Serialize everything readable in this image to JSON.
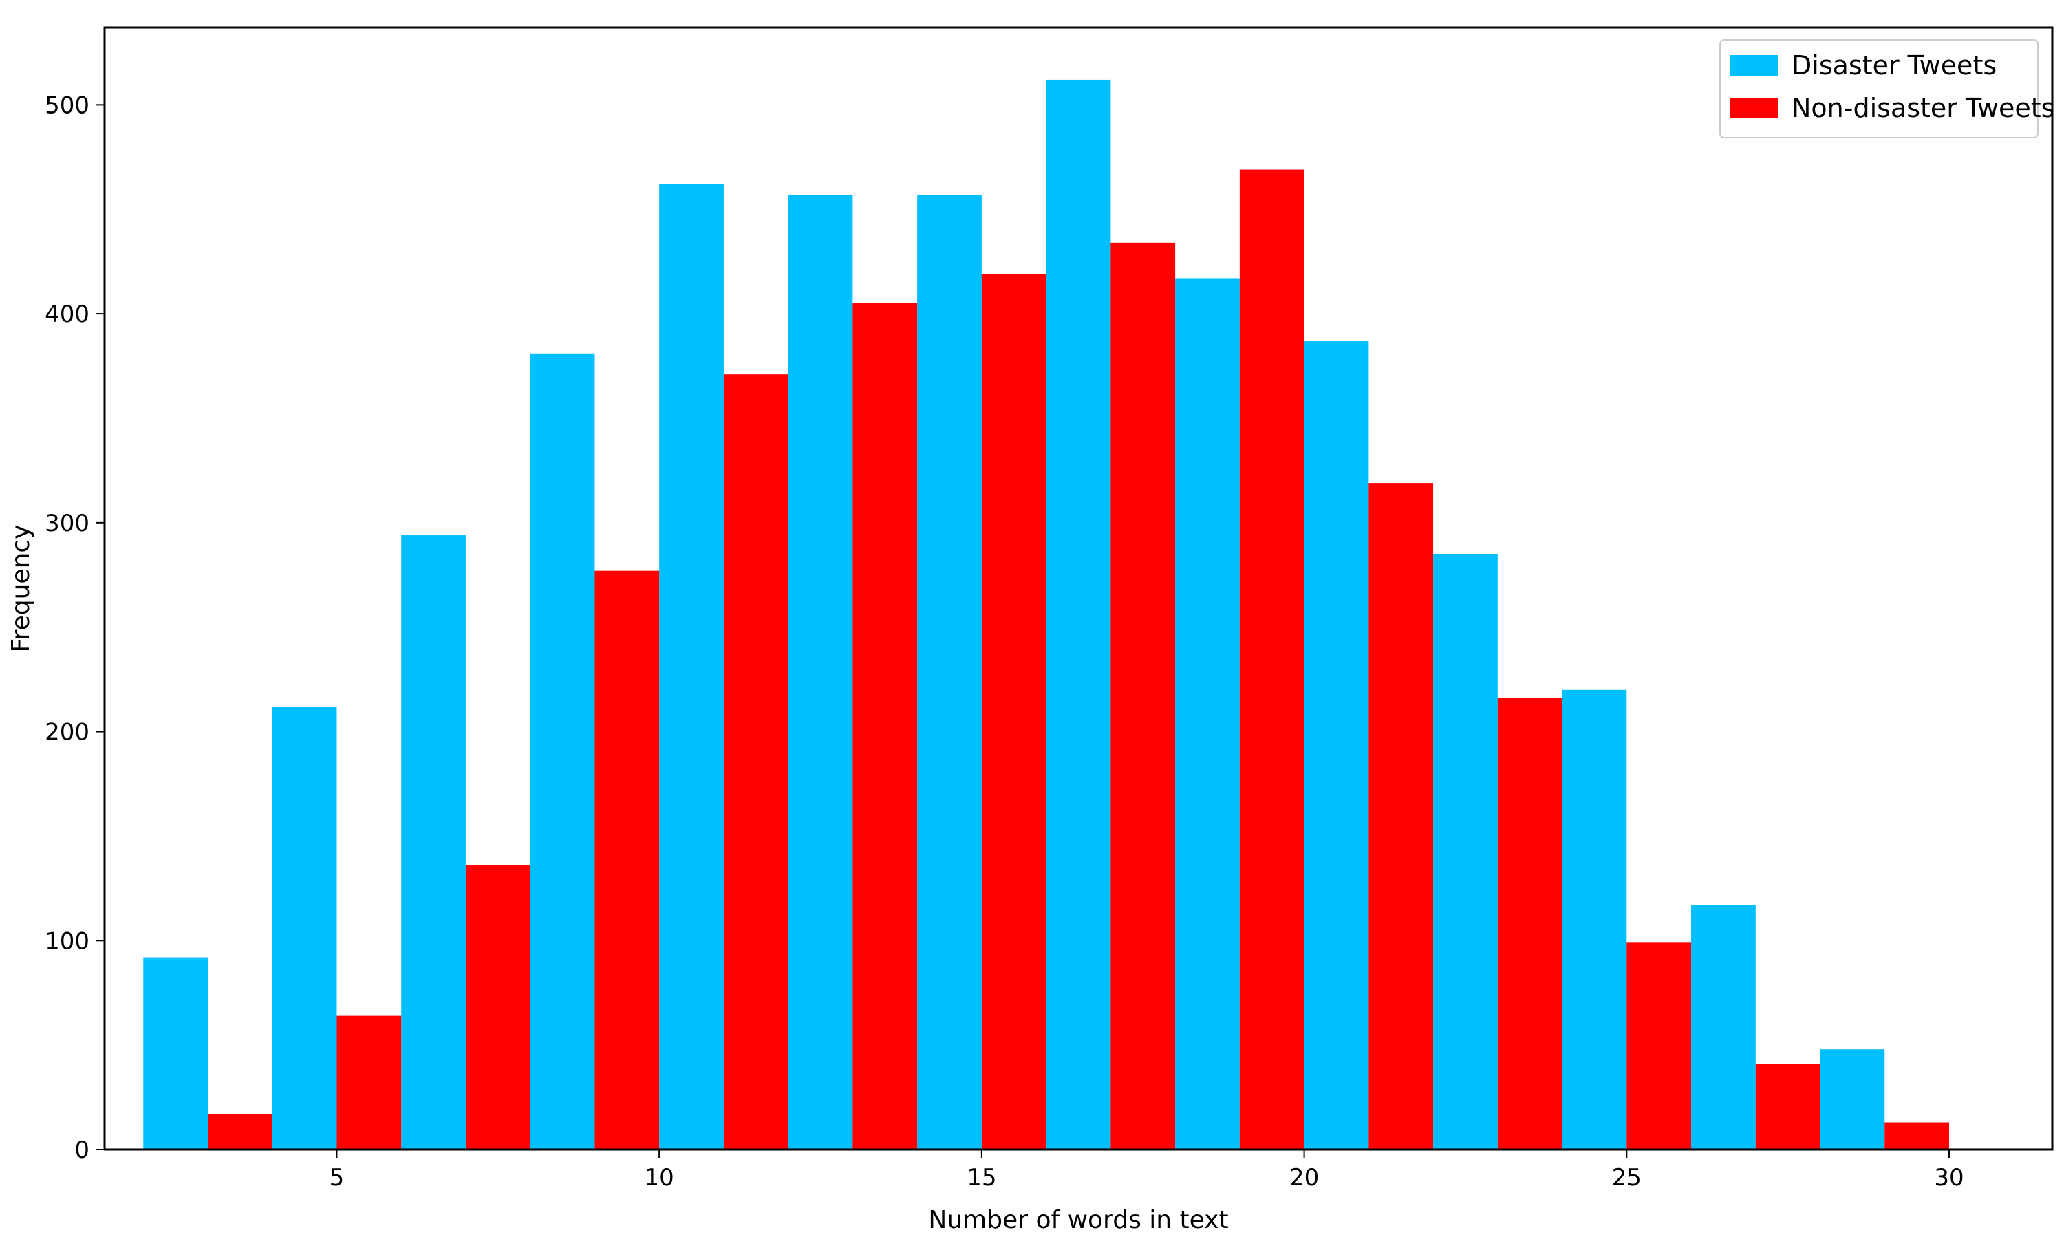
{
  "chart_data": {
    "type": "bar",
    "xlabel": "Number of words in text",
    "ylabel": "Frequency",
    "xlim": [
      1.4,
      31.6
    ],
    "ylim": [
      0,
      537
    ],
    "xticks": [
      5,
      10,
      15,
      20,
      25,
      30
    ],
    "yticks": [
      0,
      100,
      200,
      300,
      400,
      500
    ],
    "grid": false,
    "legend_position": "top-right",
    "bin_centers": [
      3,
      5,
      7,
      9,
      11,
      13,
      15,
      17,
      19,
      21,
      23,
      25,
      27,
      29
    ],
    "bin_width": 2,
    "series": [
      {
        "name": "Disaster Tweets",
        "color": "#00BFFF",
        "values": [
          92,
          212,
          294,
          381,
          462,
          457,
          457,
          512,
          417,
          387,
          285,
          220,
          117,
          48
        ]
      },
      {
        "name": "Non-disaster Tweets",
        "color": "#FF0000",
        "values": [
          17,
          64,
          136,
          277,
          371,
          405,
          419,
          434,
          469,
          319,
          216,
          99,
          41,
          13
        ]
      }
    ]
  }
}
